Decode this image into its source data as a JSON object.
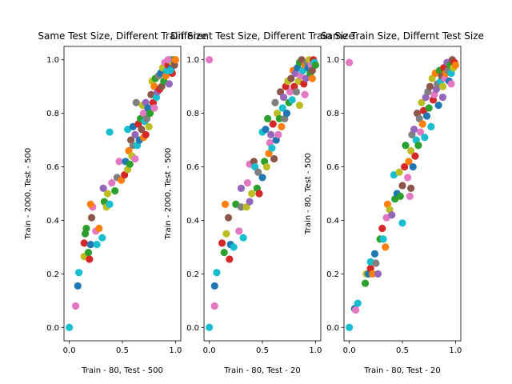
{
  "figure": {
    "background": "#ffffff",
    "palette": [
      "#1f77b4",
      "#ff7f0e",
      "#2ca02c",
      "#d62728",
      "#9467bd",
      "#8c564b",
      "#e377c2",
      "#7f7f7f",
      "#bcbd22",
      "#17becf"
    ]
  },
  "chart_data": [
    {
      "type": "scatter",
      "title": "Same Test Size, Different Train Size",
      "xlabel": "Train - 80, Test - 500",
      "ylabel": "Train - 2000, Test - 500",
      "xlim": [
        -0.05,
        1.05
      ],
      "ylim": [
        -0.05,
        1.05
      ],
      "xticks": [
        "0.0",
        "0.5",
        "1.0"
      ],
      "yticks": [
        "0.0",
        "0.2",
        "0.4",
        "0.6",
        "0.8",
        "1.0"
      ],
      "grid": false,
      "points": [
        [
          0.0,
          0.0,
          9
        ],
        [
          0.06,
          0.08,
          6
        ],
        [
          0.08,
          0.155,
          0
        ],
        [
          0.09,
          0.205,
          9
        ],
        [
          0.14,
          0.265,
          8
        ],
        [
          0.14,
          0.315,
          3
        ],
        [
          0.15,
          0.35,
          2
        ],
        [
          0.16,
          0.37,
          2
        ],
        [
          0.18,
          0.28,
          2
        ],
        [
          0.19,
          0.255,
          3
        ],
        [
          0.2,
          0.31,
          0
        ],
        [
          0.21,
          0.41,
          5
        ],
        [
          0.22,
          0.45,
          6
        ],
        [
          0.2,
          0.46,
          1
        ],
        [
          0.25,
          0.36,
          6
        ],
        [
          0.26,
          0.31,
          9
        ],
        [
          0.28,
          0.37,
          1
        ],
        [
          0.31,
          0.335,
          9
        ],
        [
          0.33,
          0.47,
          2
        ],
        [
          0.35,
          0.45,
          8
        ],
        [
          0.36,
          0.5,
          8
        ],
        [
          0.38,
          0.46,
          9
        ],
        [
          0.4,
          0.54,
          6
        ],
        [
          0.43,
          0.51,
          2
        ],
        [
          0.38,
          0.73,
          9
        ],
        [
          0.32,
          0.52,
          4
        ],
        [
          0.45,
          0.56,
          7
        ],
        [
          0.47,
          0.62,
          6
        ],
        [
          0.49,
          0.55,
          1
        ],
        [
          0.52,
          0.57,
          3
        ],
        [
          0.53,
          0.62,
          0
        ],
        [
          0.55,
          0.59,
          8
        ],
        [
          0.55,
          0.74,
          9
        ],
        [
          0.56,
          0.66,
          1
        ],
        [
          0.57,
          0.61,
          2
        ],
        [
          0.58,
          0.7,
          5
        ],
        [
          0.59,
          0.64,
          8
        ],
        [
          0.6,
          0.68,
          7
        ],
        [
          0.6,
          0.75,
          0
        ],
        [
          0.62,
          0.63,
          6
        ],
        [
          0.62,
          0.72,
          4
        ],
        [
          0.63,
          0.84,
          7
        ],
        [
          0.64,
          0.68,
          9
        ],
        [
          0.65,
          0.76,
          3
        ],
        [
          0.66,
          0.7,
          0
        ],
        [
          0.67,
          0.78,
          2
        ],
        [
          0.68,
          0.74,
          5
        ],
        [
          0.69,
          0.83,
          8
        ],
        [
          0.7,
          0.71,
          1
        ],
        [
          0.7,
          0.8,
          6
        ],
        [
          0.71,
          0.77,
          9
        ],
        [
          0.72,
          0.72,
          3
        ],
        [
          0.72,
          0.84,
          4
        ],
        [
          0.73,
          0.78,
          7
        ],
        [
          0.74,
          0.82,
          0
        ],
        [
          0.75,
          0.75,
          8
        ],
        [
          0.76,
          0.8,
          2
        ],
        [
          0.77,
          0.87,
          5
        ],
        [
          0.78,
          0.92,
          8
        ],
        [
          0.79,
          0.84,
          3
        ],
        [
          0.8,
          0.9,
          1
        ],
        [
          0.8,
          0.82,
          6
        ],
        [
          0.81,
          0.93,
          2
        ],
        [
          0.82,
          0.86,
          9
        ],
        [
          0.83,
          0.88,
          4
        ],
        [
          0.84,
          0.94,
          7
        ],
        [
          0.85,
          0.89,
          3
        ],
        [
          0.86,
          0.95,
          0
        ],
        [
          0.87,
          0.9,
          5
        ],
        [
          0.88,
          0.97,
          8
        ],
        [
          0.89,
          0.92,
          2
        ],
        [
          0.9,
          0.99,
          6
        ],
        [
          0.91,
          0.94,
          1
        ],
        [
          0.92,
          0.96,
          9
        ],
        [
          0.93,
          0.98,
          3
        ],
        [
          0.94,
          0.91,
          4
        ],
        [
          0.95,
          1.0,
          7
        ],
        [
          0.96,
          0.97,
          0
        ],
        [
          0.97,
          0.99,
          8
        ],
        [
          0.98,
          1.0,
          2
        ],
        [
          0.99,
          0.98,
          5
        ],
        [
          1.0,
          1.0,
          1
        ],
        [
          0.97,
          0.95,
          3
        ],
        [
          0.93,
          1.0,
          6
        ],
        [
          0.95,
          0.96,
          9
        ]
      ]
    },
    {
      "type": "scatter",
      "title": "Different Test Size, Different Train Size",
      "xlabel": "Train - 80, Test - 20",
      "ylabel": "Train - 2000, Test - 500",
      "xlim": [
        -0.05,
        1.05
      ],
      "ylim": [
        -0.05,
        1.05
      ],
      "xticks": [
        "0.0",
        "0.5",
        "1.0"
      ],
      "yticks": [
        "0.0",
        "0.2",
        "0.4",
        "0.6",
        "0.8",
        "1.0"
      ],
      "grid": false,
      "points": [
        [
          0.0,
          0.0,
          9
        ],
        [
          0.0,
          1.0,
          6
        ],
        [
          0.05,
          0.08,
          6
        ],
        [
          0.05,
          0.155,
          0
        ],
        [
          0.07,
          0.205,
          9
        ],
        [
          0.12,
          0.315,
          3
        ],
        [
          0.14,
          0.28,
          2
        ],
        [
          0.15,
          0.46,
          1
        ],
        [
          0.16,
          0.35,
          8
        ],
        [
          0.18,
          0.41,
          5
        ],
        [
          0.19,
          0.255,
          3
        ],
        [
          0.2,
          0.31,
          0
        ],
        [
          0.23,
          0.3,
          9
        ],
        [
          0.25,
          0.46,
          2
        ],
        [
          0.28,
          0.36,
          6
        ],
        [
          0.3,
          0.45,
          7
        ],
        [
          0.32,
          0.335,
          9
        ],
        [
          0.3,
          0.52,
          4
        ],
        [
          0.35,
          0.45,
          8
        ],
        [
          0.36,
          0.54,
          6
        ],
        [
          0.38,
          0.61,
          6
        ],
        [
          0.38,
          0.47,
          4
        ],
        [
          0.4,
          0.5,
          8
        ],
        [
          0.42,
          0.62,
          5
        ],
        [
          0.43,
          0.6,
          9
        ],
        [
          0.45,
          0.52,
          2
        ],
        [
          0.46,
          0.58,
          7
        ],
        [
          0.47,
          0.5,
          3
        ],
        [
          0.5,
          0.73,
          9
        ],
        [
          0.5,
          0.56,
          0
        ],
        [
          0.52,
          0.62,
          2
        ],
        [
          0.53,
          0.74,
          0
        ],
        [
          0.54,
          0.6,
          8
        ],
        [
          0.55,
          0.78,
          2
        ],
        [
          0.56,
          0.65,
          1
        ],
        [
          0.57,
          0.69,
          6
        ],
        [
          0.58,
          0.72,
          4
        ],
        [
          0.59,
          0.67,
          9
        ],
        [
          0.6,
          0.76,
          3
        ],
        [
          0.61,
          0.63,
          5
        ],
        [
          0.62,
          0.84,
          7
        ],
        [
          0.63,
          0.7,
          0
        ],
        [
          0.64,
          0.8,
          8
        ],
        [
          0.65,
          0.72,
          6
        ],
        [
          0.66,
          0.78,
          2
        ],
        [
          0.67,
          0.88,
          5
        ],
        [
          0.68,
          0.75,
          1
        ],
        [
          0.69,
          0.82,
          9
        ],
        [
          0.7,
          0.86,
          4
        ],
        [
          0.71,
          0.78,
          7
        ],
        [
          0.72,
          0.9,
          3
        ],
        [
          0.73,
          0.8,
          0
        ],
        [
          0.74,
          0.92,
          8
        ],
        [
          0.75,
          0.84,
          2
        ],
        [
          0.76,
          0.88,
          6
        ],
        [
          0.77,
          0.93,
          5
        ],
        [
          0.78,
          0.85,
          9
        ],
        [
          0.79,
          0.96,
          1
        ],
        [
          0.8,
          0.9,
          3
        ],
        [
          0.81,
          0.95,
          4
        ],
        [
          0.82,
          0.88,
          7
        ],
        [
          0.83,
          0.97,
          0
        ],
        [
          0.84,
          0.92,
          8
        ],
        [
          0.85,
          0.99,
          2
        ],
        [
          0.86,
          0.94,
          6
        ],
        [
          0.87,
          1.0,
          5
        ],
        [
          0.88,
          0.96,
          9
        ],
        [
          0.89,
          0.91,
          3
        ],
        [
          0.9,
          0.98,
          1
        ],
        [
          0.91,
          0.93,
          4
        ],
        [
          0.92,
          0.99,
          7
        ],
        [
          0.93,
          0.97,
          0
        ],
        [
          0.94,
          1.0,
          8
        ],
        [
          0.95,
          0.95,
          2
        ],
        [
          0.96,
          0.98,
          6
        ],
        [
          0.97,
          0.96,
          5
        ],
        [
          0.98,
          1.0,
          3
        ],
        [
          0.99,
          0.99,
          9
        ],
        [
          1.0,
          0.98,
          2
        ],
        [
          0.97,
          0.93,
          1
        ],
        [
          0.9,
          0.87,
          6
        ],
        [
          0.85,
          0.83,
          8
        ]
      ]
    },
    {
      "type": "scatter",
      "title": "Same Train Size, Differnt Test Size",
      "xlabel": "Train - 80, Test - 20",
      "ylabel": "Train - 80, Test - 500",
      "xlim": [
        -0.05,
        1.05
      ],
      "ylim": [
        -0.05,
        1.05
      ],
      "xticks": [
        "0.0",
        "0.5",
        "1.0"
      ],
      "yticks": [
        "0.0",
        "0.2",
        "0.4",
        "0.6",
        "0.8",
        "1.0"
      ],
      "grid": false,
      "points": [
        [
          0.0,
          0.0,
          9
        ],
        [
          0.0,
          0.99,
          6
        ],
        [
          0.05,
          0.07,
          0
        ],
        [
          0.06,
          0.065,
          6
        ],
        [
          0.08,
          0.09,
          9
        ],
        [
          0.15,
          0.165,
          2
        ],
        [
          0.16,
          0.2,
          8
        ],
        [
          0.18,
          0.2,
          0
        ],
        [
          0.2,
          0.22,
          3
        ],
        [
          0.2,
          0.245,
          9
        ],
        [
          0.22,
          0.2,
          1
        ],
        [
          0.24,
          0.275,
          0
        ],
        [
          0.25,
          0.24,
          7
        ],
        [
          0.27,
          0.2,
          4
        ],
        [
          0.29,
          0.33,
          2
        ],
        [
          0.31,
          0.37,
          3
        ],
        [
          0.32,
          0.33,
          9
        ],
        [
          0.34,
          0.3,
          1
        ],
        [
          0.35,
          0.41,
          6
        ],
        [
          0.36,
          0.46,
          1
        ],
        [
          0.38,
          0.44,
          8
        ],
        [
          0.4,
          0.42,
          4
        ],
        [
          0.42,
          0.57,
          9
        ],
        [
          0.43,
          0.48,
          2
        ],
        [
          0.45,
          0.5,
          0
        ],
        [
          0.47,
          0.58,
          8
        ],
        [
          0.5,
          0.53,
          5
        ],
        [
          0.5,
          0.39,
          9
        ],
        [
          0.52,
          0.6,
          3
        ],
        [
          0.53,
          0.68,
          2
        ],
        [
          0.55,
          0.56,
          6
        ],
        [
          0.56,
          0.62,
          1
        ],
        [
          0.57,
          0.49,
          6
        ],
        [
          0.58,
          0.66,
          8
        ],
        [
          0.59,
          0.72,
          7
        ],
        [
          0.6,
          0.6,
          0
        ],
        [
          0.61,
          0.74,
          4
        ],
        [
          0.62,
          0.64,
          3
        ],
        [
          0.63,
          0.7,
          9
        ],
        [
          0.64,
          0.8,
          5
        ],
        [
          0.65,
          0.68,
          2
        ],
        [
          0.66,
          0.78,
          7
        ],
        [
          0.67,
          0.73,
          6
        ],
        [
          0.68,
          0.84,
          8
        ],
        [
          0.69,
          0.76,
          1
        ],
        [
          0.7,
          0.81,
          3
        ],
        [
          0.71,
          0.71,
          9
        ],
        [
          0.72,
          0.86,
          4
        ],
        [
          0.73,
          0.79,
          0
        ],
        [
          0.74,
          0.88,
          7
        ],
        [
          0.75,
          0.82,
          2
        ],
        [
          0.76,
          0.9,
          5
        ],
        [
          0.77,
          0.75,
          9
        ],
        [
          0.78,
          0.93,
          8
        ],
        [
          0.79,
          0.85,
          3
        ],
        [
          0.8,
          0.87,
          6
        ],
        [
          0.81,
          0.95,
          1
        ],
        [
          0.82,
          0.89,
          4
        ],
        [
          0.83,
          0.91,
          7
        ],
        [
          0.84,
          0.83,
          0
        ],
        [
          0.85,
          0.96,
          2
        ],
        [
          0.86,
          0.92,
          9
        ],
        [
          0.87,
          0.94,
          5
        ],
        [
          0.88,
          0.9,
          8
        ],
        [
          0.89,
          0.97,
          3
        ],
        [
          0.9,
          0.93,
          6
        ],
        [
          0.91,
          0.95,
          1
        ],
        [
          0.92,
          0.99,
          4
        ],
        [
          0.93,
          0.96,
          7
        ],
        [
          0.94,
          0.92,
          0
        ],
        [
          0.95,
          0.98,
          2
        ],
        [
          0.96,
          0.95,
          9
        ],
        [
          0.97,
          1.0,
          5
        ],
        [
          0.98,
          0.97,
          8
        ],
        [
          0.99,
          0.99,
          3
        ],
        [
          1.0,
          0.98,
          1
        ],
        [
          0.96,
          0.91,
          6
        ],
        [
          0.88,
          0.86,
          4
        ],
        [
          0.58,
          0.52,
          5
        ],
        [
          0.48,
          0.49,
          2
        ]
      ]
    }
  ]
}
